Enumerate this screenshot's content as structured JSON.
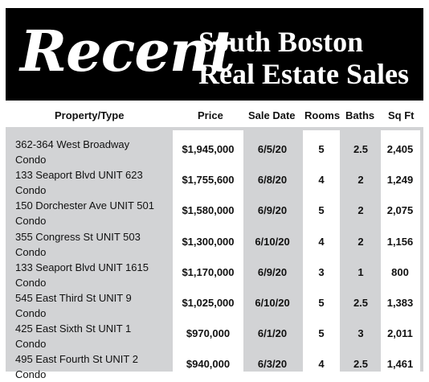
{
  "banner": {
    "script_title": "Recent",
    "title_line1": "South Boston",
    "title_line2": "Real Estate Sales"
  },
  "columns": {
    "property": "Property/Type",
    "price": "Price",
    "sale_date": "Sale Date",
    "rooms": "Rooms",
    "baths": "Baths",
    "sqft": "Sq Ft"
  },
  "rows": [
    {
      "address": "362-364 West Broadway",
      "type": "Condo",
      "price": "$1,945,000",
      "date": "6/5/20",
      "rooms": "5",
      "baths": "2.5",
      "sqft": "2,405"
    },
    {
      "address": "133 Seaport Blvd UNIT 623",
      "type": "Condo",
      "price": "$1,755,600",
      "date": "6/8/20",
      "rooms": "4",
      "baths": "2",
      "sqft": "1,249"
    },
    {
      "address": "150 Dorchester Ave UNIT 501",
      "type": "Condo",
      "price": "$1,580,000",
      "date": "6/9/20",
      "rooms": "5",
      "baths": "2",
      "sqft": "2,075"
    },
    {
      "address": "355 Congress St UNIT 503",
      "type": "Condo",
      "price": "$1,300,000",
      "date": "6/10/20",
      "rooms": "4",
      "baths": "2",
      "sqft": "1,156"
    },
    {
      "address": "133 Seaport Blvd UNIT 1615",
      "type": "Condo",
      "price": "$1,170,000",
      "date": "6/9/20",
      "rooms": "3",
      "baths": "1",
      "sqft": "800"
    },
    {
      "address": "545 East Third St UNIT 9",
      "type": "Condo",
      "price": "$1,025,000",
      "date": "6/10/20",
      "rooms": "5",
      "baths": "2.5",
      "sqft": "1,383"
    },
    {
      "address": "425 East Sixth St UNIT 1",
      "type": "Condo",
      "price": "$970,000",
      "date": "6/1/20",
      "rooms": "5",
      "baths": "3",
      "sqft": "2,011"
    },
    {
      "address": "495 East Fourth St UNIT 2",
      "type": "Condo",
      "price": "$940,000",
      "date": "6/3/20",
      "rooms": "4",
      "baths": "2.5",
      "sqft": "1,461"
    }
  ]
}
